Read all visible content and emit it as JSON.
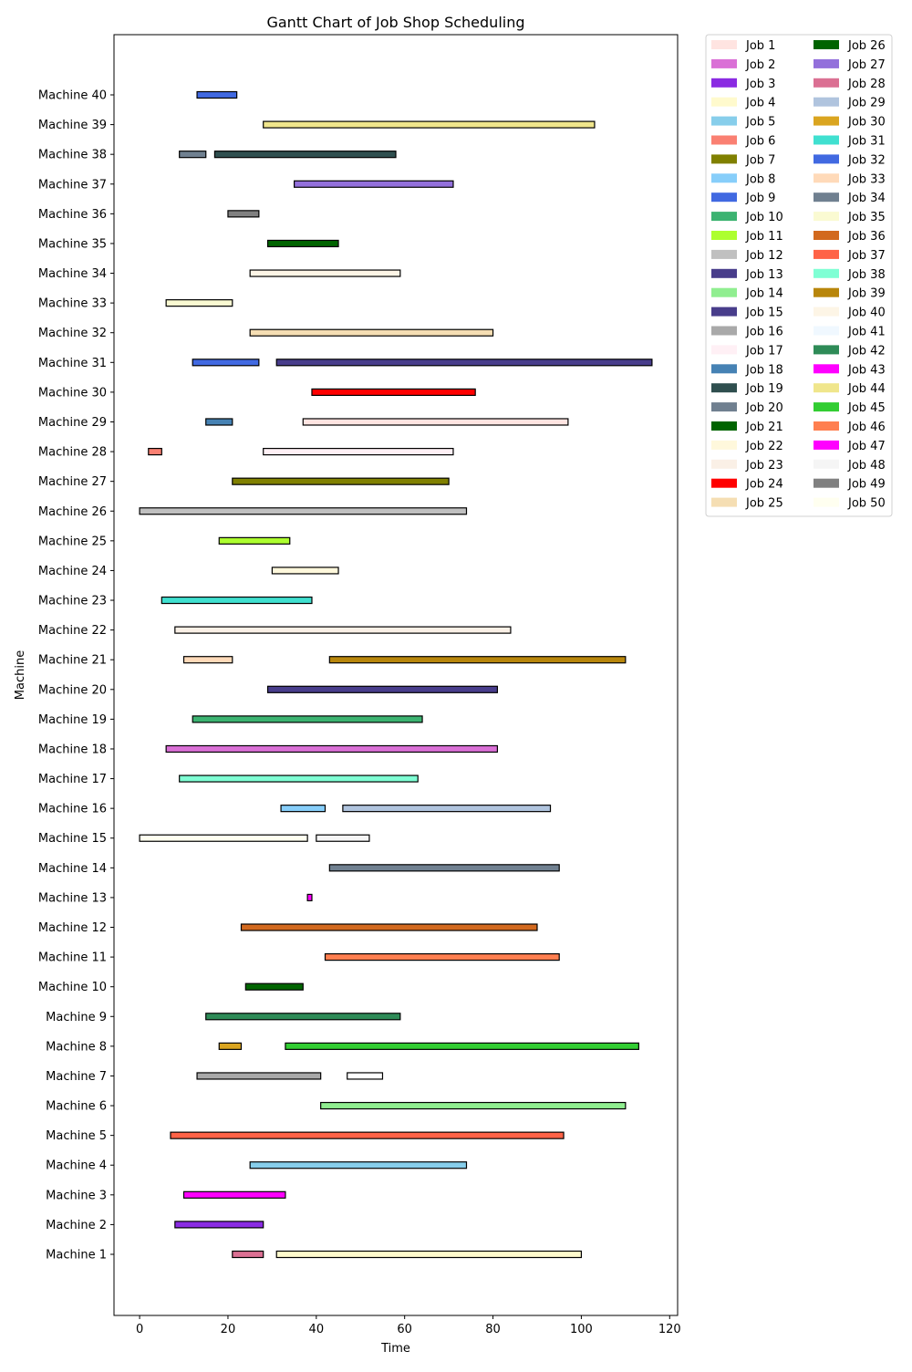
{
  "chart_data": {
    "type": "gantt",
    "title": "Gantt Chart of Job Shop Scheduling",
    "xlabel": "Time",
    "ylabel": "Machine",
    "xlim": [
      -5.8,
      121.8
    ],
    "xticks": [
      0,
      20,
      40,
      60,
      80,
      100,
      120
    ],
    "grid": false,
    "legend_position": "outside right, top",
    "legend_columns": 2,
    "machines": [
      "Machine 1",
      "Machine 2",
      "Machine 3",
      "Machine 4",
      "Machine 5",
      "Machine 6",
      "Machine 7",
      "Machine 8",
      "Machine 9",
      "Machine 10",
      "Machine 11",
      "Machine 12",
      "Machine 13",
      "Machine 14",
      "Machine 15",
      "Machine 16",
      "Machine 17",
      "Machine 18",
      "Machine 19",
      "Machine 20",
      "Machine 21",
      "Machine 22",
      "Machine 23",
      "Machine 24",
      "Machine 25",
      "Machine 26",
      "Machine 27",
      "Machine 28",
      "Machine 29",
      "Machine 30",
      "Machine 31",
      "Machine 32",
      "Machine 33",
      "Machine 34",
      "Machine 35",
      "Machine 36",
      "Machine 37",
      "Machine 38",
      "Machine 39",
      "Machine 40"
    ],
    "jobs": [
      {
        "name": "Job 1",
        "color": "#ffe4e1"
      },
      {
        "name": "Job 2",
        "color": "#da70d6"
      },
      {
        "name": "Job 3",
        "color": "#8a2be2"
      },
      {
        "name": "Job 4",
        "color": "#fffacd"
      },
      {
        "name": "Job 5",
        "color": "#87ceeb"
      },
      {
        "name": "Job 6",
        "color": "#fa8072"
      },
      {
        "name": "Job 7",
        "color": "#808000"
      },
      {
        "name": "Job 8",
        "color": "#87cefa"
      },
      {
        "name": "Job 9",
        "color": "#4169e1"
      },
      {
        "name": "Job 10",
        "color": "#3cb371"
      },
      {
        "name": "Job 11",
        "color": "#adff2f"
      },
      {
        "name": "Job 12",
        "color": "#c0c0c0"
      },
      {
        "name": "Job 13",
        "color": "#483d8b"
      },
      {
        "name": "Job 14",
        "color": "#90ee90"
      },
      {
        "name": "Job 15",
        "color": "#483d8b"
      },
      {
        "name": "Job 16",
        "color": "#a9a9a9"
      },
      {
        "name": "Job 17",
        "color": "#fff0f5"
      },
      {
        "name": "Job 18",
        "color": "#4682b4"
      },
      {
        "name": "Job 19",
        "color": "#2f4f4f"
      },
      {
        "name": "Job 20",
        "color": "#708090"
      },
      {
        "name": "Job 21",
        "color": "#006400"
      },
      {
        "name": "Job 22",
        "color": "#fff8dc"
      },
      {
        "name": "Job 23",
        "color": "#faf0e6"
      },
      {
        "name": "Job 24",
        "color": "#ff0000"
      },
      {
        "name": "Job 25",
        "color": "#f5deb3"
      },
      {
        "name": "Job 26",
        "color": "#006400"
      },
      {
        "name": "Job 27",
        "color": "#9370db"
      },
      {
        "name": "Job 28",
        "color": "#db7093"
      },
      {
        "name": "Job 29",
        "color": "#b0c4de"
      },
      {
        "name": "Job 30",
        "color": "#daa520"
      },
      {
        "name": "Job 31",
        "color": "#40e0d0"
      },
      {
        "name": "Job 32",
        "color": "#4169e1"
      },
      {
        "name": "Job 33",
        "color": "#ffdab9"
      },
      {
        "name": "Job 34",
        "color": "#708090"
      },
      {
        "name": "Job 35",
        "color": "#fafad2"
      },
      {
        "name": "Job 36",
        "color": "#d2691e"
      },
      {
        "name": "Job 37",
        "color": "#ff6347"
      },
      {
        "name": "Job 38",
        "color": "#7fffd4"
      },
      {
        "name": "Job 39",
        "color": "#b8860b"
      },
      {
        "name": "Job 40",
        "color": "#fdf5e6"
      },
      {
        "name": "Job 41",
        "color": "#f0f8ff"
      },
      {
        "name": "Job 42",
        "color": "#2e8b57"
      },
      {
        "name": "Job 43",
        "color": "#ff00ff"
      },
      {
        "name": "Job 44",
        "color": "#f0e68c"
      },
      {
        "name": "Job 45",
        "color": "#32cd32"
      },
      {
        "name": "Job 46",
        "color": "#ff7f50"
      },
      {
        "name": "Job 47",
        "color": "#ff00ff"
      },
      {
        "name": "Job 48",
        "color": "#f5f5f5"
      },
      {
        "name": "Job 49",
        "color": "#808080"
      },
      {
        "name": "Job 50",
        "color": "#fffff0"
      }
    ],
    "bars": [
      {
        "machine": 1,
        "start": 21,
        "end": 28,
        "color": "#db7093"
      },
      {
        "machine": 1,
        "start": 31,
        "end": 100,
        "color": "#fffacd"
      },
      {
        "machine": 2,
        "start": 8,
        "end": 28,
        "color": "#8a2be2"
      },
      {
        "machine": 3,
        "start": 10,
        "end": 33,
        "color": "#ff00ff"
      },
      {
        "machine": 4,
        "start": 25,
        "end": 74,
        "color": "#87ceeb"
      },
      {
        "machine": 5,
        "start": 7,
        "end": 96,
        "color": "#ff6347"
      },
      {
        "machine": 6,
        "start": 41,
        "end": 110,
        "color": "#90ee90"
      },
      {
        "machine": 7,
        "start": 13,
        "end": 41,
        "color": "#a9a9a9"
      },
      {
        "machine": 7,
        "start": 47,
        "end": 55,
        "color": "#ffffff"
      },
      {
        "machine": 8,
        "start": 18,
        "end": 23,
        "color": "#daa520"
      },
      {
        "machine": 8,
        "start": 33,
        "end": 113,
        "color": "#32cd32"
      },
      {
        "machine": 9,
        "start": 15,
        "end": 59,
        "color": "#2e8b57"
      },
      {
        "machine": 10,
        "start": 24,
        "end": 37,
        "color": "#006400"
      },
      {
        "machine": 11,
        "start": 42,
        "end": 95,
        "color": "#ff7f50"
      },
      {
        "machine": 12,
        "start": 23,
        "end": 90,
        "color": "#d2691e"
      },
      {
        "machine": 13,
        "start": 38,
        "end": 39,
        "color": "#ff00ff"
      },
      {
        "machine": 14,
        "start": 43,
        "end": 95,
        "color": "#708090"
      },
      {
        "machine": 15,
        "start": 0,
        "end": 38,
        "color": "#fffff0"
      },
      {
        "machine": 15,
        "start": 40,
        "end": 52,
        "color": "#f5f5f5"
      },
      {
        "machine": 16,
        "start": 32,
        "end": 42,
        "color": "#87cefa"
      },
      {
        "machine": 16,
        "start": 46,
        "end": 93,
        "color": "#b0c4de"
      },
      {
        "machine": 17,
        "start": 9,
        "end": 63,
        "color": "#7fffd4"
      },
      {
        "machine": 18,
        "start": 6,
        "end": 81,
        "color": "#da70d6"
      },
      {
        "machine": 19,
        "start": 12,
        "end": 64,
        "color": "#3cb371"
      },
      {
        "machine": 20,
        "start": 29,
        "end": 81,
        "color": "#483d8b"
      },
      {
        "machine": 21,
        "start": 10,
        "end": 21,
        "color": "#ffdab9"
      },
      {
        "machine": 21,
        "start": 43,
        "end": 110,
        "color": "#b8860b"
      },
      {
        "machine": 22,
        "start": 8,
        "end": 84,
        "color": "#faf0e6"
      },
      {
        "machine": 23,
        "start": 5,
        "end": 39,
        "color": "#40e0d0"
      },
      {
        "machine": 24,
        "start": 30,
        "end": 45,
        "color": "#fff8dc"
      },
      {
        "machine": 25,
        "start": 18,
        "end": 34,
        "color": "#adff2f"
      },
      {
        "machine": 26,
        "start": 0,
        "end": 74,
        "color": "#c0c0c0"
      },
      {
        "machine": 27,
        "start": 21,
        "end": 70,
        "color": "#808000"
      },
      {
        "machine": 28,
        "start": 2,
        "end": 5,
        "color": "#fa8072"
      },
      {
        "machine": 28,
        "start": 28,
        "end": 71,
        "color": "#fff0f5"
      },
      {
        "machine": 29,
        "start": 15,
        "end": 21,
        "color": "#4682b4"
      },
      {
        "machine": 29,
        "start": 37,
        "end": 97,
        "color": "#ffe4e1"
      },
      {
        "machine": 30,
        "start": 39,
        "end": 76,
        "color": "#ff0000"
      },
      {
        "machine": 31,
        "start": 12,
        "end": 27,
        "color": "#4169e1"
      },
      {
        "machine": 31,
        "start": 31,
        "end": 116,
        "color": "#483d8b"
      },
      {
        "machine": 32,
        "start": 25,
        "end": 80,
        "color": "#f5deb3"
      },
      {
        "machine": 33,
        "start": 6,
        "end": 21,
        "color": "#fafad2"
      },
      {
        "machine": 34,
        "start": 25,
        "end": 59,
        "color": "#fdf5e6"
      },
      {
        "machine": 35,
        "start": 29,
        "end": 45,
        "color": "#006400"
      },
      {
        "machine": 36,
        "start": 20,
        "end": 27,
        "color": "#808080"
      },
      {
        "machine": 37,
        "start": 35,
        "end": 71,
        "color": "#9370db"
      },
      {
        "machine": 38,
        "start": 9,
        "end": 15,
        "color": "#708090"
      },
      {
        "machine": 38,
        "start": 17,
        "end": 58,
        "color": "#2f4f4f"
      },
      {
        "machine": 39,
        "start": 28,
        "end": 103,
        "color": "#f0e68c"
      },
      {
        "machine": 40,
        "start": 13,
        "end": 22,
        "color": "#4169e1"
      }
    ]
  }
}
